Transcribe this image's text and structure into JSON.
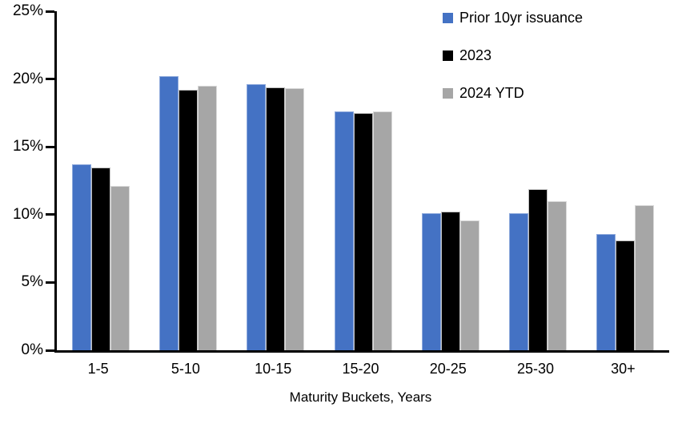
{
  "chart_data": {
    "type": "bar",
    "title": "",
    "xlabel": "Maturity Buckets, Years",
    "ylabel": "",
    "categories": [
      "1-5",
      "5-10",
      "10-15",
      "15-20",
      "20-25",
      "25-30",
      "30+"
    ],
    "series": [
      {
        "name": "Prior 10yr issuance",
        "color": "#4472C4",
        "border_color": "#8FAADC",
        "values": [
          13.7,
          20.2,
          19.6,
          17.6,
          10.1,
          10.1,
          8.6
        ]
      },
      {
        "name": "2023",
        "color": "#000000",
        "border_color": "#BFBFBF",
        "values": [
          13.5,
          19.2,
          19.4,
          17.5,
          10.2,
          11.9,
          8.1
        ]
      },
      {
        "name": "2024 YTD",
        "color": "#A6A6A6",
        "border_color": "#D9D9D9",
        "values": [
          12.1,
          19.5,
          19.3,
          17.6,
          9.6,
          11.0,
          10.7
        ]
      }
    ],
    "ylim": [
      0,
      25
    ],
    "yticks": [
      0,
      5,
      10,
      15,
      20,
      25
    ],
    "ytick_suffix": "%",
    "grid": false,
    "legend_position": "top-right",
    "axis_color": "#000000"
  }
}
